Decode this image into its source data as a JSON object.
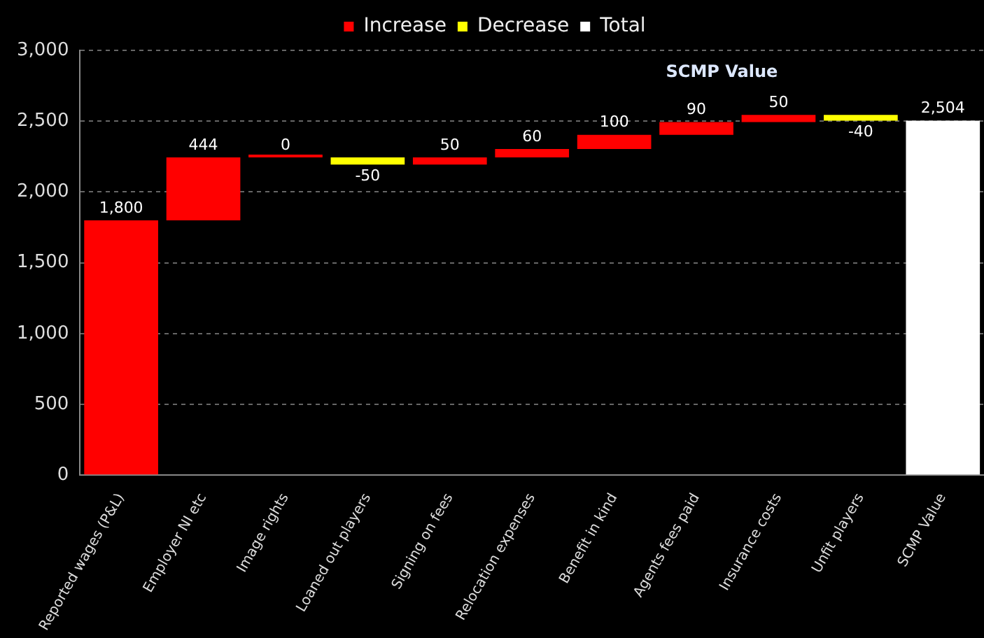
{
  "chart_data": {
    "type": "bar",
    "title": "SCMP Value",
    "categories": [
      "Reported wages (P&L)",
      "Employer NI etc",
      "Image rights",
      "Loaned out players",
      "Signing on fees",
      "Relocation expenses",
      "Benefit in kind",
      "Agents fees paid",
      "Insurance costs",
      "Unfit players",
      "SCMP Value"
    ],
    "series": [
      {
        "name": "Increase",
        "color": "#ff0000",
        "base": [
          0,
          1800,
          2244,
          null,
          2194,
          2244,
          2304,
          2404,
          2494,
          null,
          null
        ],
        "values": [
          1800,
          444,
          0,
          null,
          50,
          60,
          100,
          90,
          50,
          null,
          null
        ],
        "value_labels": [
          "1,800",
          "444",
          "0",
          null,
          "50",
          "60",
          "100",
          "90",
          "50",
          null,
          null
        ]
      },
      {
        "name": "Decrease",
        "color": "#ffff00",
        "base": [
          null,
          null,
          null,
          2244,
          null,
          null,
          null,
          null,
          null,
          2544,
          null
        ],
        "values": [
          null,
          null,
          null,
          -50,
          null,
          null,
          null,
          null,
          null,
          -40,
          null
        ],
        "value_labels": [
          null,
          null,
          null,
          "-50",
          null,
          null,
          null,
          null,
          null,
          "-40",
          null
        ]
      },
      {
        "name": "Total",
        "color": "#ffffff",
        "base": [
          null,
          null,
          null,
          null,
          null,
          null,
          null,
          null,
          null,
          null,
          0
        ],
        "values": [
          null,
          null,
          null,
          null,
          null,
          null,
          null,
          null,
          null,
          null,
          2504
        ],
        "value_labels": [
          null,
          null,
          null,
          null,
          null,
          null,
          null,
          null,
          null,
          null,
          "2,504"
        ]
      }
    ],
    "ylim": [
      0,
      3000
    ],
    "yticks": [
      0,
      500,
      {
        "value": 1000,
        "label": "1,000"
      },
      {
        "value": 1500,
        "label": "1,500"
      },
      {
        "value": 2000,
        "label": "2,000"
      },
      {
        "value": 2500,
        "label": "2,500"
      },
      {
        "value": 3000,
        "label": "3,000"
      }
    ],
    "grid": "y",
    "legend": "top"
  }
}
